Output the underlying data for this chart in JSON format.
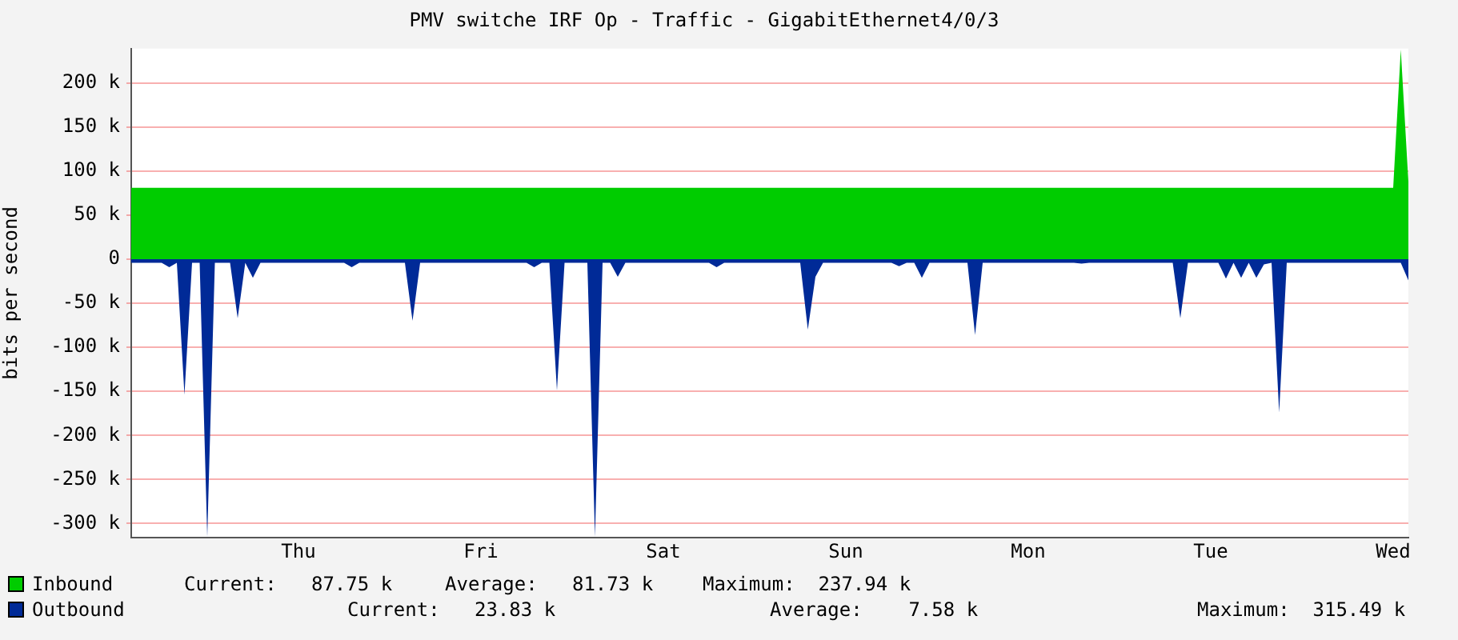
{
  "chart_data": {
    "type": "area",
    "title": "PMV switche IRF Op - Traffic - GigabitEthernet4/0/3",
    "ylabel": "bits per second",
    "categories": [
      null,
      null,
      null,
      null,
      null,
      null,
      null,
      null,
      null,
      null,
      null,
      null,
      null,
      null,
      null,
      null,
      null,
      null,
      null,
      null,
      null,
      null,
      "Thu",
      null,
      null,
      null,
      null,
      null,
      null,
      null,
      null,
      null,
      null,
      null,
      null,
      null,
      null,
      null,
      null,
      null,
      null,
      null,
      null,
      null,
      null,
      null,
      "Fri",
      null,
      null,
      null,
      null,
      null,
      null,
      null,
      null,
      null,
      null,
      null,
      null,
      null,
      null,
      null,
      null,
      null,
      null,
      null,
      null,
      null,
      null,
      null,
      "Sat",
      null,
      null,
      null,
      null,
      null,
      null,
      null,
      null,
      null,
      null,
      null,
      null,
      null,
      null,
      null,
      null,
      null,
      null,
      null,
      null,
      null,
      null,
      null,
      "Sun",
      null,
      null,
      null,
      null,
      null,
      null,
      null,
      null,
      null,
      null,
      null,
      null,
      null,
      null,
      null,
      null,
      null,
      null,
      null,
      null,
      null,
      null,
      null,
      "Mon",
      null,
      null,
      null,
      null,
      null,
      null,
      null,
      null,
      null,
      null,
      null,
      null,
      null,
      null,
      null,
      null,
      null,
      null,
      null,
      null,
      null,
      null,
      null,
      "Tue",
      null,
      null,
      null,
      null,
      null,
      null,
      null,
      null,
      null,
      null,
      null,
      null,
      null,
      null,
      null,
      null,
      null,
      null,
      null,
      null,
      null,
      null,
      null,
      "Wed",
      null,
      null
    ],
    "ylim": [
      -316000,
      239000
    ],
    "yticks": [
      {
        "value": -300000,
        "label": "-300 k"
      },
      {
        "value": -250000,
        "label": "-250 k"
      },
      {
        "value": -200000,
        "label": "-200 k"
      },
      {
        "value": -150000,
        "label": "-150 k"
      },
      {
        "value": -100000,
        "label": "-100 k"
      },
      {
        "value": -50000,
        "label": "-50 k"
      },
      0,
      {
        "value": 50000,
        "label": "50 k"
      },
      {
        "value": 100000,
        "label": "100 k"
      },
      {
        "value": 150000,
        "label": "150 k"
      },
      {
        "value": 200000,
        "label": "200 k"
      }
    ],
    "grid": "y",
    "legend": "bottom",
    "series": [
      {
        "name": "Inbound",
        "color": "#00cc00",
        "values": [
          81000,
          81000,
          81000,
          81000,
          81000,
          81000,
          81000,
          81000,
          81000,
          81000,
          81000,
          81000,
          81000,
          81000,
          81000,
          81000,
          81000,
          81000,
          81000,
          81000,
          81000,
          81000,
          81000,
          81000,
          81000,
          81000,
          81000,
          81000,
          81000,
          81000,
          81000,
          81000,
          81000,
          81000,
          81000,
          81000,
          81000,
          81000,
          81000,
          81000,
          81000,
          81000,
          81000,
          81000,
          81000,
          81000,
          81000,
          81000,
          81000,
          81000,
          81000,
          81000,
          81000,
          81000,
          81000,
          81000,
          81000,
          81000,
          81000,
          81000,
          81000,
          81000,
          81000,
          81000,
          81000,
          81000,
          81000,
          81000,
          81000,
          81000,
          81000,
          81000,
          81000,
          81000,
          81000,
          81000,
          81000,
          81000,
          81000,
          81000,
          81000,
          81000,
          81000,
          81000,
          81000,
          81000,
          81000,
          81000,
          81000,
          81000,
          81000,
          81000,
          81000,
          81000,
          81000,
          81000,
          81000,
          81000,
          81000,
          81000,
          81000,
          81000,
          81000,
          81000,
          81000,
          81000,
          81000,
          81000,
          81000,
          81000,
          81000,
          81000,
          81000,
          81000,
          81000,
          81000,
          81000,
          81000,
          81000,
          81000,
          81000,
          81000,
          81000,
          81000,
          81000,
          81000,
          81000,
          81000,
          81000,
          81000,
          81000,
          81000,
          81000,
          81000,
          81000,
          81000,
          81000,
          81000,
          81000,
          81000,
          81000,
          81000,
          81000,
          81000,
          81000,
          81000,
          81000,
          81000,
          81000,
          81000,
          81000,
          81000,
          81000,
          81000,
          81000,
          81000,
          81000,
          81000,
          81000,
          81000,
          81000,
          81000,
          81000,
          81000,
          81000,
          81000,
          81000,
          238000,
          88000
        ]
      },
      {
        "name": "Outbound",
        "color": "#002a97",
        "values": [
          -4000,
          -4000,
          -4000,
          -4000,
          -4000,
          -9000,
          -4000,
          -154000,
          -4000,
          -4000,
          -315000,
          -4000,
          -4000,
          -4000,
          -67000,
          -4000,
          -21000,
          -4000,
          -4000,
          -4000,
          -4000,
          -4000,
          -4000,
          -4000,
          -4000,
          -4000,
          -4000,
          -4000,
          -4000,
          -9000,
          -4000,
          -4000,
          -4000,
          -4000,
          -4000,
          -4000,
          -4000,
          -70000,
          -4000,
          -4000,
          -4000,
          -4000,
          -4000,
          -4000,
          -4000,
          -4000,
          -4000,
          -4000,
          -4000,
          -4000,
          -4000,
          -4000,
          -4000,
          -9000,
          -4000,
          -4000,
          -149000,
          -4000,
          -4000,
          -4000,
          -4000,
          -315000,
          -4000,
          -4000,
          -20000,
          -4000,
          -4000,
          -4000,
          -4000,
          -4000,
          -4000,
          -4000,
          -4000,
          -4000,
          -4000,
          -4000,
          -4000,
          -9000,
          -4000,
          -4000,
          -4000,
          -4000,
          -4000,
          -4000,
          -4000,
          -4000,
          -4000,
          -4000,
          -4000,
          -80000,
          -20000,
          -4000,
          -4000,
          -4000,
          -4000,
          -4000,
          -4000,
          -4000,
          -4000,
          -4000,
          -4000,
          -8000,
          -4000,
          -4000,
          -21000,
          -4000,
          -4000,
          -4000,
          -4000,
          -4000,
          -4000,
          -86000,
          -4000,
          -4000,
          -4000,
          -4000,
          -4000,
          -4000,
          -4000,
          -4000,
          -4000,
          -4000,
          -4000,
          -4000,
          -4000,
          -5000,
          -4000,
          -4000,
          -4000,
          -4000,
          -4000,
          -4000,
          -4000,
          -4000,
          -4000,
          -4000,
          -4000,
          -4000,
          -67000,
          -4000,
          -4000,
          -4000,
          -4000,
          -4000,
          -22000,
          -4000,
          -21000,
          -4000,
          -21000,
          -6000,
          -4000,
          -174000,
          -4000,
          -4000,
          -4000,
          -4000,
          -4000,
          -4000,
          -4000,
          -4000,
          -4000,
          -4000,
          -4000,
          -4000,
          -4000,
          -4000,
          -4000,
          -4000,
          -24000
        ]
      }
    ],
    "annotations": [
      "Current:   87.75 k",
      "Average:   81.73 k",
      "Maximum:  237.94 k",
      "Current:   23.83 k",
      "Average:    7.58 k",
      "Maximum:  315.49 k"
    ]
  }
}
